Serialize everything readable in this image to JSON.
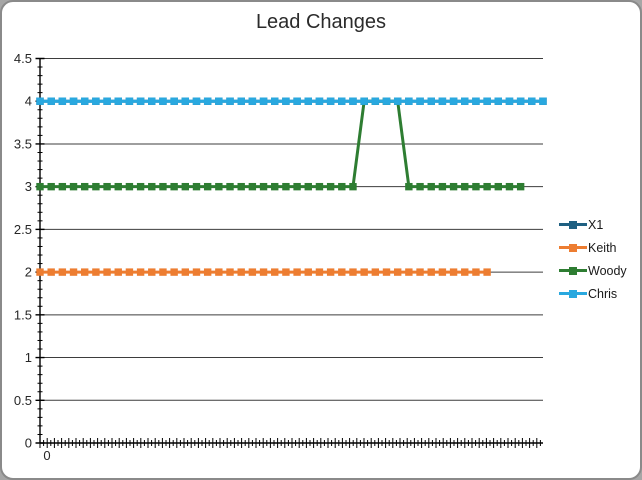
{
  "frame": {
    "background": "#ffffff",
    "border_color": "#8a8a8a",
    "outside_color": "#a6a6a6"
  },
  "chart_data": {
    "type": "line",
    "title": "Lead Changes",
    "xlabel": "",
    "ylabel": "",
    "legend_position": "right",
    "grid": "horizontal-major-on",
    "x_axis": {
      "labels": [
        "0"
      ],
      "first_label": "0",
      "tick_style": "dense-cross-ticks"
    },
    "y_axis": {
      "min": 0,
      "max": 4.5,
      "major_unit": 0.5,
      "minor_unit": 0.1,
      "ticks": [
        "0",
        "0.5",
        "1",
        "1.5",
        "2",
        "2.5",
        "3",
        "3.5",
        "4",
        "4.5"
      ]
    },
    "style": {
      "gridline_color": "#3d3d3d",
      "axis_color": "#000000",
      "text_color": "#262626",
      "marker": "square",
      "line_width": 3
    },
    "series": [
      {
        "name": "X1",
        "color": "#1f6082",
        "note": "fully obscured beneath Chris line at y=4",
        "values": [
          4,
          4,
          4,
          4,
          4,
          4,
          4,
          4,
          4,
          4,
          4,
          4,
          4,
          4,
          4,
          4,
          4,
          4,
          4,
          4,
          4,
          4,
          4,
          4,
          4,
          4,
          4,
          4,
          4,
          4,
          4,
          4,
          4,
          4,
          4,
          4,
          4,
          4,
          4,
          4,
          4,
          4,
          4,
          4,
          4,
          4
        ]
      },
      {
        "name": "Keith",
        "color": "#ed7d31",
        "values": [
          2,
          2,
          2,
          2,
          2,
          2,
          2,
          2,
          2,
          2,
          2,
          2,
          2,
          2,
          2,
          2,
          2,
          2,
          2,
          2,
          2,
          2,
          2,
          2,
          2,
          2,
          2,
          2,
          2,
          2,
          2,
          2,
          2,
          2,
          2,
          2,
          2,
          2,
          2,
          2,
          2
        ]
      },
      {
        "name": "Woody",
        "color": "#2e7d32",
        "values": [
          3,
          3,
          3,
          3,
          3,
          3,
          3,
          3,
          3,
          3,
          3,
          3,
          3,
          3,
          3,
          3,
          3,
          3,
          3,
          3,
          3,
          3,
          3,
          3,
          3,
          3,
          3,
          3,
          3,
          4,
          4,
          4,
          4,
          3,
          3,
          3,
          3,
          3,
          3,
          3,
          3,
          3,
          3,
          3
        ]
      },
      {
        "name": "Chris",
        "color": "#29a8df",
        "values": [
          4,
          4,
          4,
          4,
          4,
          4,
          4,
          4,
          4,
          4,
          4,
          4,
          4,
          4,
          4,
          4,
          4,
          4,
          4,
          4,
          4,
          4,
          4,
          4,
          4,
          4,
          4,
          4,
          4,
          4,
          4,
          4,
          4,
          4,
          4,
          4,
          4,
          4,
          4,
          4,
          4,
          4,
          4,
          4,
          4,
          4
        ]
      }
    ]
  }
}
